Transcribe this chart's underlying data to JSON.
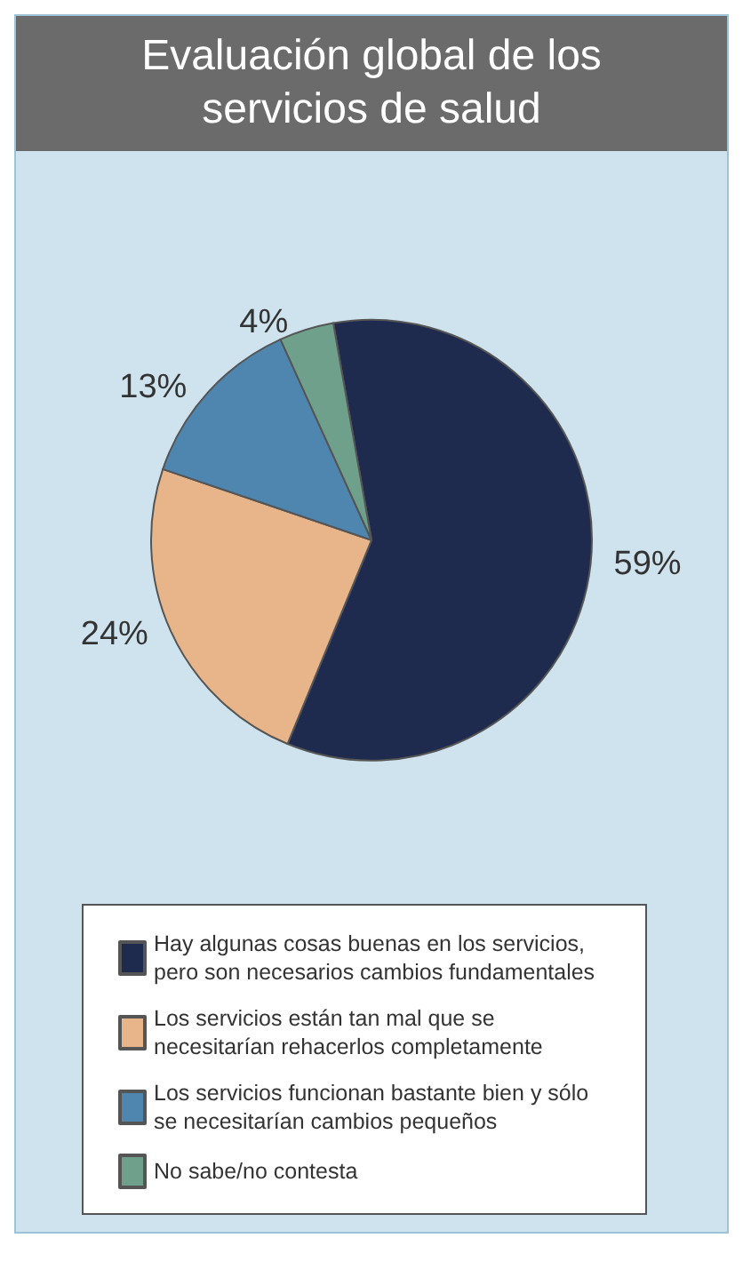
{
  "chart_data": {
    "type": "pie",
    "title": "Evaluación global de los servicios de salud",
    "categories": [
      "Hay algunas cosas buenas en los servicios, pero son necesarios cambios fundamentales",
      "Los servicios están tan mal que se necesitarían rehacerlos completamente",
      "Los servicios funcionan bastante bien y sólo se necesitarían cambios pequeños",
      "No sabe/no contesta"
    ],
    "values": [
      59,
      24,
      13,
      4
    ],
    "colors": [
      "#1f2a4f",
      "#e8b48a",
      "#4f86b0",
      "#6fa08c"
    ],
    "value_labels": [
      "59%",
      "24%",
      "13%",
      "4%"
    ],
    "legend": "bottom"
  }
}
